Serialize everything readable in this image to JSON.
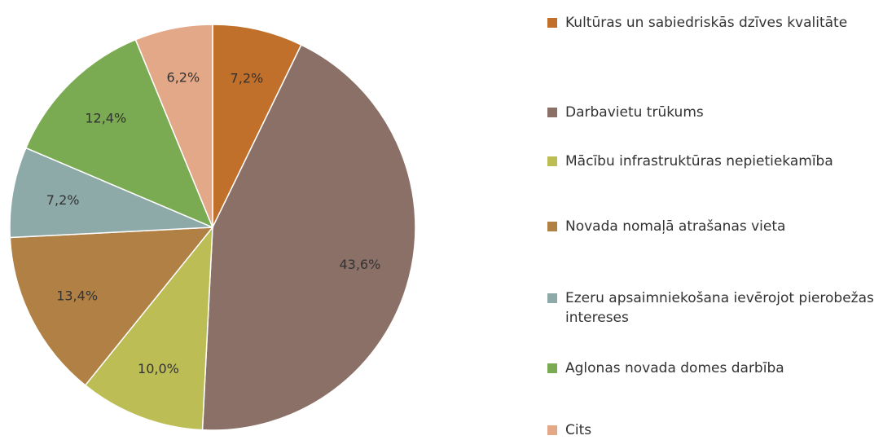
{
  "chart_data": {
    "type": "pie",
    "categories": [
      "Kultūras un sabiedriskās dzīves kvalitāte",
      "Darbavietu trūkums",
      "Mācību infrastruktūras nepietiekamība",
      "Novada nomaļā atrašanas vieta",
      "Ezeru apsaimniekošana ievērojot pierobežas intereses",
      "Aglonas novada domes darbība",
      "Cits"
    ],
    "values": [
      7.2,
      43.6,
      10.0,
      13.4,
      7.2,
      12.4,
      6.2
    ],
    "value_labels": [
      "7,2%",
      "43,6%",
      "10,0%",
      "13,4%",
      "7,2%",
      "12,4%",
      "6,2%"
    ],
    "colors": [
      "#c0702a",
      "#8b7068",
      "#bdbd55",
      "#b08045",
      "#8eaaa8",
      "#7aab52",
      "#e2a888"
    ],
    "legend": "right"
  }
}
